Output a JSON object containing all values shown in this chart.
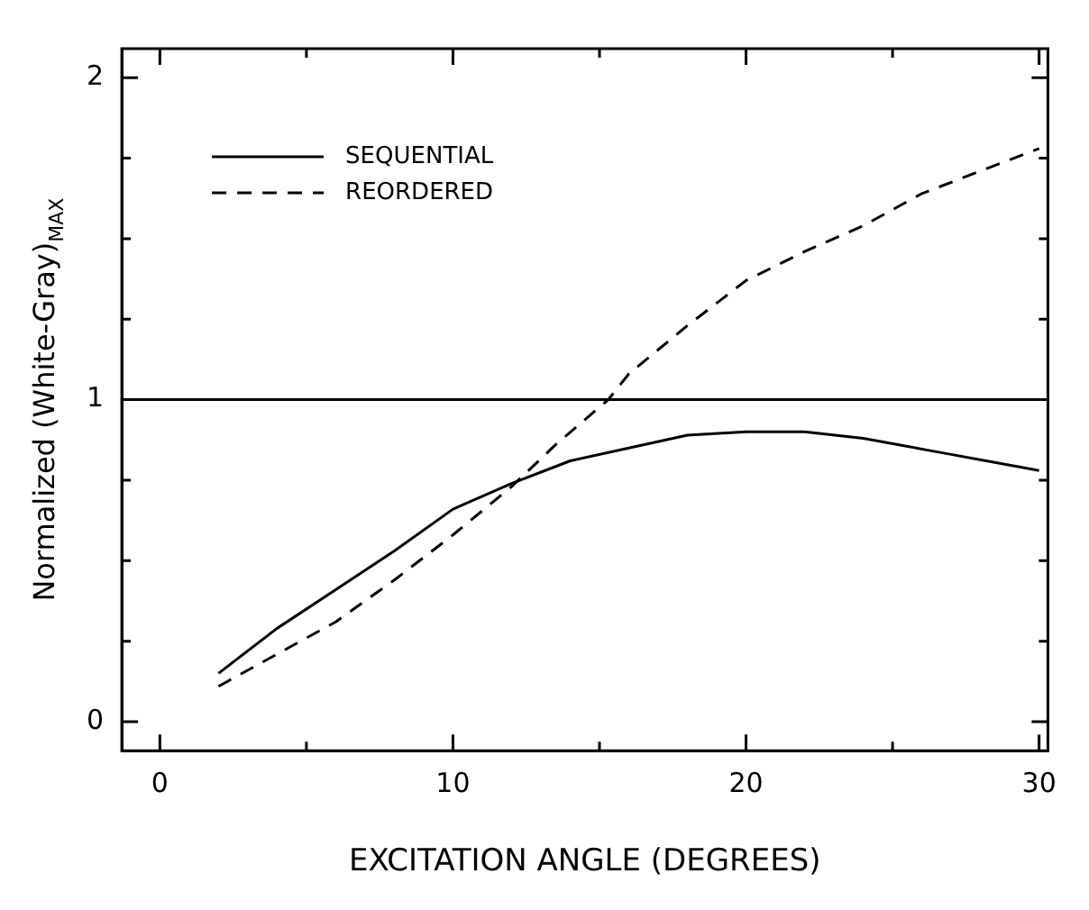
{
  "chart_data": {
    "type": "line",
    "xlabel": "EXCITATION ANGLE (DEGREES)",
    "ylabel": "Normalized (White-Gray)$_{MAX}$",
    "xlim": [
      -1.3,
      30.3
    ],
    "ylim": [
      -0.09,
      2.09
    ],
    "xticks": [
      0,
      {
        "value": 5,
        "label": null
      },
      10,
      {
        "value": 15,
        "label": null
      },
      20,
      {
        "value": 25,
        "label": null
      },
      30
    ],
    "yticks": [
      0,
      {
        "value": 0.25,
        "label": null
      },
      {
        "value": 0.5,
        "label": null
      },
      {
        "value": 0.75,
        "label": null
      },
      1,
      {
        "value": 1.25,
        "label": null
      },
      {
        "value": 1.5,
        "label": null
      },
      {
        "value": 1.75,
        "label": null
      },
      2
    ],
    "grid": false,
    "legend": "top left",
    "marker": "none",
    "ref_lines": [
      {
        "axis": "y",
        "value": 1,
        "color": "#000000",
        "line_style": "solid"
      }
    ],
    "series": [
      {
        "name": "SEQUENTIAL",
        "color": "#000000",
        "line_style": "solid",
        "x": [
          2,
          4,
          6,
          8,
          10,
          12,
          14,
          16,
          18,
          20,
          22,
          24,
          27,
          30
        ],
        "values": [
          0.15,
          0.29,
          0.41,
          0.53,
          0.66,
          0.74,
          0.81,
          0.85,
          0.89,
          0.9,
          0.9,
          0.88,
          0.83,
          0.78
        ]
      },
      {
        "name": "REORDERED",
        "color": "#000000",
        "line_style": "dashed",
        "x": [
          2,
          4,
          6,
          8,
          10,
          12,
          13.5,
          15.3,
          16,
          18,
          20,
          22,
          24,
          26,
          28,
          30
        ],
        "values": [
          0.11,
          0.21,
          0.31,
          0.44,
          0.58,
          0.73,
          0.86,
          1.0,
          1.08,
          1.23,
          1.37,
          1.46,
          1.54,
          1.64,
          1.71,
          1.78
        ]
      }
    ]
  }
}
